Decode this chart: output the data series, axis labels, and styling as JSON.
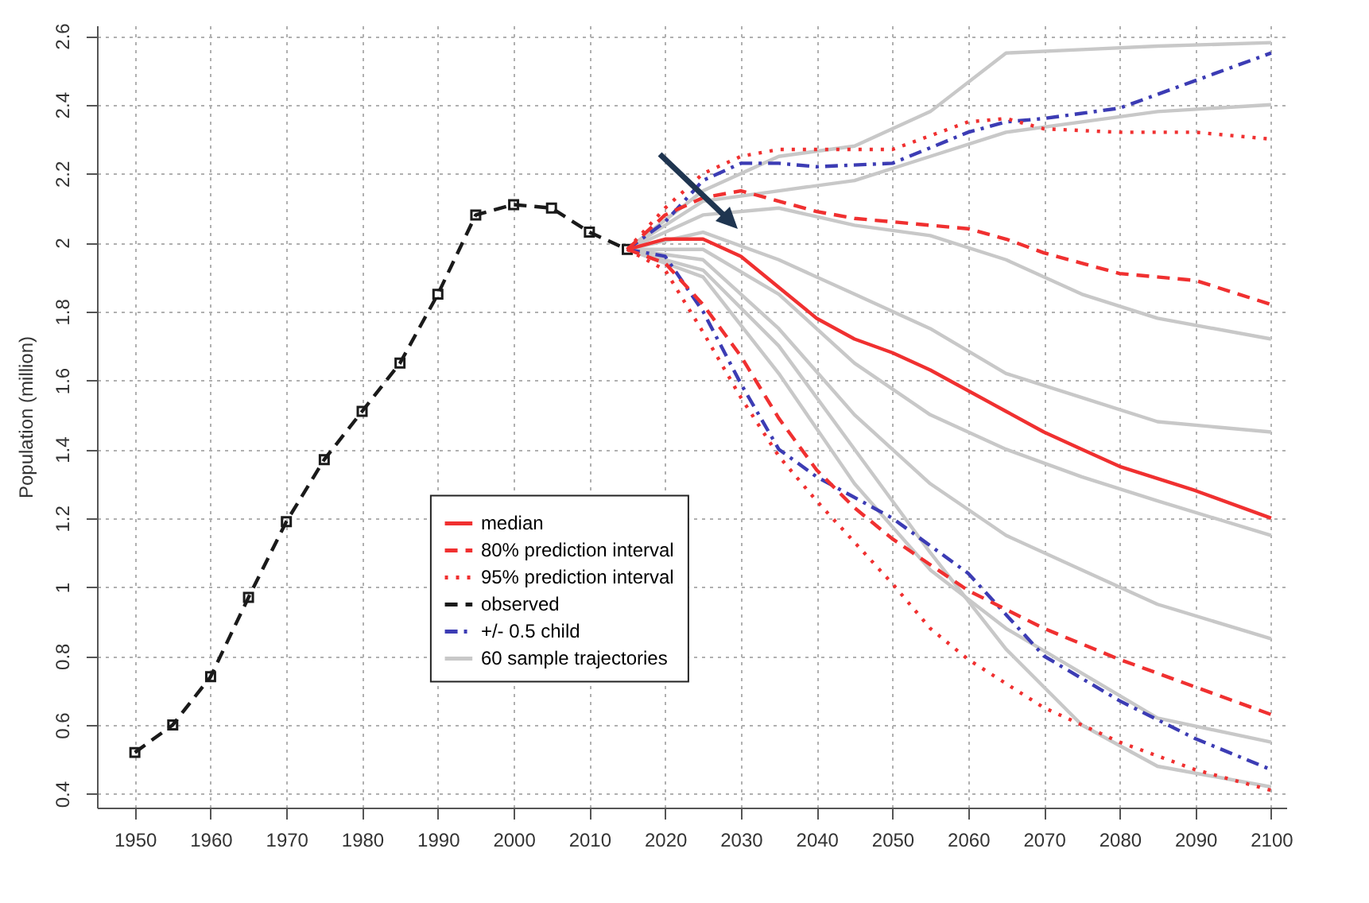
{
  "chart_data": {
    "type": "line",
    "ylabel": "Population (million)",
    "xlim": [
      1945,
      2102
    ],
    "xticks": [
      1950,
      1960,
      1970,
      1980,
      1990,
      2000,
      2010,
      2020,
      2030,
      2040,
      2050,
      2060,
      2070,
      2080,
      2090,
      2100
    ],
    "ylim": [
      0.36,
      2.63
    ],
    "yticks": [
      0.4,
      0.6,
      0.8,
      {
        "value": 1,
        "label": "1"
      },
      1.2,
      1.4,
      1.6,
      1.8,
      {
        "value": 2,
        "label": "2"
      },
      2.2,
      2.4,
      2.6
    ],
    "grid": true,
    "legend": "bottom",
    "series": [
      {
        "name": "median",
        "color": "#f03030",
        "line_style": "solid",
        "x": [
          2015,
          2020,
          2025,
          2030,
          2035,
          2040,
          2045,
          2050,
          2055,
          2060,
          2065,
          2070,
          2075,
          2080,
          2090,
          2100
        ],
        "values": [
          1.98,
          2.01,
          2.01,
          1.96,
          1.87,
          1.78,
          1.72,
          1.68,
          1.63,
          1.57,
          1.51,
          1.45,
          1.4,
          1.35,
          1.28,
          1.2
        ]
      },
      {
        "name": "80% prediction interval",
        "color": "#f03030",
        "line_style": "dashed",
        "x": [
          2015,
          2020,
          2025,
          2030,
          2035,
          2040,
          2045,
          2050,
          2060,
          2065,
          2070,
          2075,
          2080,
          2090,
          2100
        ],
        "values": [
          1.98,
          2.08,
          2.13,
          2.15,
          2.12,
          2.09,
          2.07,
          2.06,
          2.04,
          2.01,
          1.97,
          1.94,
          1.91,
          1.89,
          1.82
        ]
      },
      {
        "color": "#f03030",
        "line_style": "dashed",
        "x": [
          2015,
          2020,
          2025,
          2030,
          2035,
          2040,
          2045,
          2050,
          2060,
          2070,
          2080,
          2090,
          2100
        ],
        "values": [
          1.98,
          1.94,
          1.82,
          1.67,
          1.49,
          1.34,
          1.23,
          1.14,
          0.99,
          0.88,
          0.79,
          0.71,
          0.63
        ]
      },
      {
        "name": "95% prediction interval",
        "color": "#f03030",
        "line_style": "dotted",
        "x": [
          2015,
          2020,
          2025,
          2030,
          2035,
          2040,
          2050,
          2055,
          2060,
          2065,
          2070,
          2080,
          2090,
          2100
        ],
        "values": [
          1.98,
          2.1,
          2.2,
          2.25,
          2.27,
          2.27,
          2.27,
          2.31,
          2.35,
          2.36,
          2.33,
          2.32,
          2.32,
          2.3
        ]
      },
      {
        "color": "#f03030",
        "line_style": "dotted",
        "x": [
          2015,
          2020,
          2025,
          2030,
          2035,
          2040,
          2045,
          2050,
          2055,
          2060,
          2070,
          2080,
          2090,
          2100
        ],
        "values": [
          1.98,
          1.92,
          1.74,
          1.55,
          1.38,
          1.25,
          1.13,
          1.01,
          0.88,
          0.79,
          0.65,
          0.55,
          0.47,
          0.41
        ]
      },
      {
        "name": "observed",
        "color": "#1a1a1a",
        "line_style": "dashed",
        "marker": "square",
        "x": [
          1950,
          1955,
          1960,
          1965,
          1970,
          1975,
          1980,
          1985,
          1990,
          1995,
          2000,
          2005,
          2010,
          2015
        ],
        "values": [
          0.52,
          0.6,
          0.74,
          0.97,
          1.19,
          1.37,
          1.51,
          1.65,
          1.85,
          2.08,
          2.11,
          2.1,
          2.03,
          1.98
        ]
      },
      {
        "name": "+/- 0.5 child",
        "color": "#3c3cb4",
        "line_style": "dashdot",
        "x": [
          2015,
          2020,
          2025,
          2030,
          2035,
          2040,
          2050,
          2060,
          2065,
          2070,
          2080,
          2090,
          2100
        ],
        "values": [
          1.98,
          2.06,
          2.18,
          2.23,
          2.23,
          2.22,
          2.23,
          2.32,
          2.35,
          2.36,
          2.39,
          2.47,
          2.55
        ]
      },
      {
        "color": "#3c3cb4",
        "line_style": "dashdot",
        "x": [
          2015,
          2020,
          2025,
          2030,
          2035,
          2040,
          2050,
          2060,
          2070,
          2080,
          2090,
          2100
        ],
        "values": [
          1.98,
          1.96,
          1.8,
          1.59,
          1.4,
          1.32,
          1.2,
          1.04,
          0.8,
          0.67,
          0.56,
          0.47
        ]
      },
      {
        "name": "60 sample trajectories",
        "color": "#c8c8c8",
        "line_style": "solid",
        "x": [
          2015,
          2025,
          2035,
          2045,
          2055,
          2065,
          2075,
          2085,
          2100
        ],
        "values": [
          1.98,
          2.15,
          2.25,
          2.28,
          2.38,
          2.55,
          2.56,
          2.57,
          2.58
        ]
      },
      {
        "color": "#c8c8c8",
        "line_style": "solid",
        "x": [
          2015,
          2025,
          2035,
          2045,
          2055,
          2065,
          2075,
          2085,
          2100
        ],
        "values": [
          1.98,
          2.12,
          2.15,
          2.18,
          2.25,
          2.32,
          2.35,
          2.38,
          2.4
        ]
      },
      {
        "color": "#c8c8c8",
        "line_style": "solid",
        "x": [
          2015,
          2025,
          2035,
          2045,
          2055,
          2065,
          2075,
          2085,
          2100
        ],
        "values": [
          1.98,
          2.08,
          2.1,
          2.05,
          2.02,
          1.95,
          1.85,
          1.78,
          1.72
        ]
      },
      {
        "color": "#c8c8c8",
        "line_style": "solid",
        "x": [
          2015,
          2025,
          2035,
          2045,
          2055,
          2065,
          2075,
          2085,
          2100
        ],
        "values": [
          1.98,
          2.03,
          1.95,
          1.85,
          1.75,
          1.62,
          1.55,
          1.48,
          1.45
        ]
      },
      {
        "color": "#c8c8c8",
        "line_style": "solid",
        "x": [
          2015,
          2025,
          2035,
          2045,
          2055,
          2065,
          2075,
          2085,
          2100
        ],
        "values": [
          1.98,
          1.98,
          1.85,
          1.65,
          1.5,
          1.4,
          1.32,
          1.25,
          1.15
        ]
      },
      {
        "color": "#c8c8c8",
        "line_style": "solid",
        "x": [
          2015,
          2025,
          2035,
          2045,
          2055,
          2065,
          2075,
          2085,
          2100
        ],
        "values": [
          1.98,
          1.95,
          1.75,
          1.5,
          1.3,
          1.15,
          1.05,
          0.95,
          0.85
        ]
      },
      {
        "color": "#c8c8c8",
        "line_style": "solid",
        "x": [
          2015,
          2025,
          2035,
          2045,
          2055,
          2065,
          2075,
          2085,
          2100
        ],
        "values": [
          1.98,
          1.9,
          1.62,
          1.3,
          1.05,
          0.88,
          0.75,
          0.62,
          0.55
        ]
      },
      {
        "color": "#c8c8c8",
        "line_style": "solid",
        "x": [
          2015,
          2025,
          2035,
          2045,
          2055,
          2065,
          2075,
          2085,
          2100
        ],
        "values": [
          1.98,
          1.92,
          1.7,
          1.4,
          1.1,
          0.82,
          0.6,
          0.48,
          0.42
        ]
      }
    ]
  }
}
